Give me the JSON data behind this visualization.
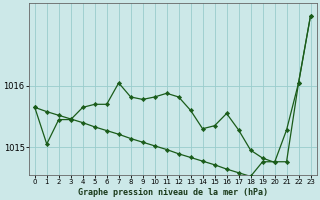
{
  "title": "Graphe pression niveau de la mer (hPa)",
  "background_color": "#cce8e8",
  "grid_color": "#99cccc",
  "line_color": "#1a5c1a",
  "marker_color": "#1a5c1a",
  "xlim": [
    -0.5,
    23.5
  ],
  "ylim": [
    1014.55,
    1017.35
  ],
  "yticks": [
    1015,
    1016
  ],
  "xtick_labels": [
    "0",
    "1",
    "2",
    "3",
    "4",
    "5",
    "6",
    "7",
    "8",
    "9",
    "10",
    "11",
    "12",
    "13",
    "14",
    "15",
    "16",
    "17",
    "18",
    "19",
    "20",
    "21",
    "22",
    "23"
  ],
  "xticks": [
    0,
    1,
    2,
    3,
    4,
    5,
    6,
    7,
    8,
    9,
    10,
    11,
    12,
    13,
    14,
    15,
    16,
    17,
    18,
    19,
    20,
    21,
    22,
    23
  ],
  "series_jagged": {
    "x": [
      0,
      1,
      2,
      3,
      4,
      5,
      6,
      7,
      8,
      9,
      10,
      11,
      12,
      13,
      14,
      15,
      16,
      17,
      18,
      19,
      20,
      21,
      22,
      23
    ],
    "y": [
      1015.65,
      1015.05,
      1015.45,
      1015.45,
      1015.65,
      1015.7,
      1015.7,
      1016.05,
      1015.82,
      1015.78,
      1015.82,
      1015.88,
      1015.82,
      1015.6,
      1015.3,
      1015.35,
      1015.55,
      1015.28,
      1014.95,
      1014.82,
      1014.75,
      1015.28,
      1016.05,
      1017.15
    ]
  },
  "series_diagonal": {
    "x": [
      0,
      1,
      2,
      3,
      4,
      5,
      6,
      7,
      8,
      9,
      10,
      11,
      12,
      13,
      14,
      15,
      16,
      17,
      18,
      19,
      20,
      21,
      22,
      23
    ],
    "y": [
      1015.65,
      1015.58,
      1015.52,
      1015.46,
      1015.4,
      1015.33,
      1015.27,
      1015.21,
      1015.14,
      1015.08,
      1015.02,
      1014.96,
      1014.89,
      1014.83,
      1014.77,
      1014.71,
      1014.64,
      1014.58,
      1014.52,
      1014.76,
      1014.76,
      1014.76,
      1016.05,
      1017.15
    ]
  }
}
